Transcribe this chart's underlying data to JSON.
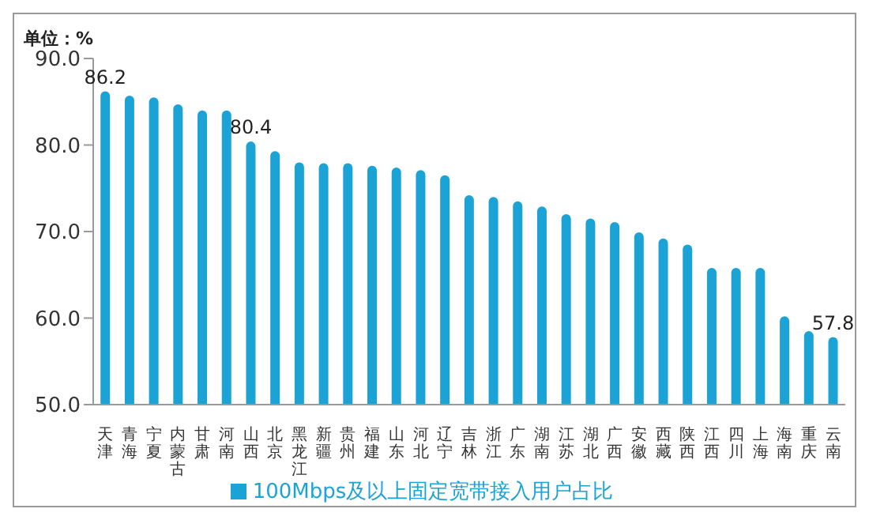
{
  "chart_data": {
    "type": "bar",
    "ylabel": "单位：%",
    "categories": [
      "天津",
      "青海",
      "宁夏",
      "内蒙古",
      "甘肃",
      "河南",
      "山西",
      "北京",
      "黑龙江",
      "新疆",
      "贵州",
      "福建",
      "山东",
      "河北",
      "辽宁",
      "吉林",
      "浙江",
      "广东",
      "湖南",
      "江苏",
      "湖北",
      "广西",
      "安徽",
      "西藏",
      "陕西",
      "江西",
      "四川",
      "上海",
      "海南",
      "重庆",
      "云南"
    ],
    "series": [
      {
        "name": "100Mbps及以上固定宽带接入用户占比",
        "color": "#1ca3d6",
        "values": [
          86.2,
          85.7,
          85.5,
          84.7,
          84.0,
          84.0,
          80.4,
          79.3,
          78.0,
          77.9,
          77.9,
          77.6,
          77.4,
          77.1,
          76.5,
          74.2,
          74.0,
          73.5,
          72.9,
          72.0,
          71.5,
          71.1,
          69.9,
          69.2,
          68.5,
          65.8,
          65.8,
          65.8,
          60.2,
          58.5,
          57.8
        ],
        "value_labels": [
          "86.2",
          null,
          null,
          null,
          null,
          null,
          "80.4",
          null,
          null,
          null,
          null,
          null,
          null,
          null,
          null,
          null,
          null,
          null,
          null,
          null,
          null,
          null,
          null,
          null,
          null,
          null,
          null,
          null,
          null,
          null,
          "57.8"
        ]
      }
    ],
    "ylim": [
      50,
      90
    ],
    "yticks": [
      {
        "value": 50,
        "label": "50.0"
      },
      {
        "value": 60,
        "label": "60.0"
      },
      {
        "value": 70,
        "label": "70.0"
      },
      {
        "value": 80,
        "label": "80.0"
      },
      {
        "value": 90,
        "label": "90.0"
      }
    ],
    "grid": false,
    "legend": "bottom"
  }
}
